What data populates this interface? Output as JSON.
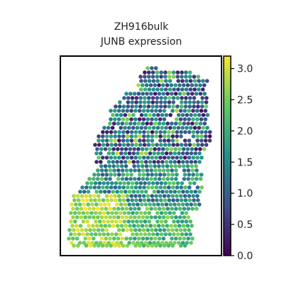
{
  "chart_data": {
    "type": "scatter",
    "plot_kind": "spatial hexbin spot map",
    "title_lines": [
      "ZH916bulk",
      "JUNB expression"
    ],
    "xlabel": "",
    "ylabel": "",
    "axis_ticks_visible": false,
    "grid": false,
    "legend": "none",
    "colorbar": {
      "placement": "right",
      "cmap": "viridis",
      "range": [
        0.0,
        3.2
      ],
      "ticks": [
        0.0,
        0.5,
        1.0,
        1.5,
        2.0,
        2.5,
        3.0
      ],
      "tick_labels": [
        "0.0",
        "0.5",
        "1.0",
        "1.5",
        "2.0",
        "2.5",
        "3.0"
      ]
    },
    "colors": {
      "low": "#440154",
      "mid": "#21918c",
      "high": "#fde725"
    }
  }
}
